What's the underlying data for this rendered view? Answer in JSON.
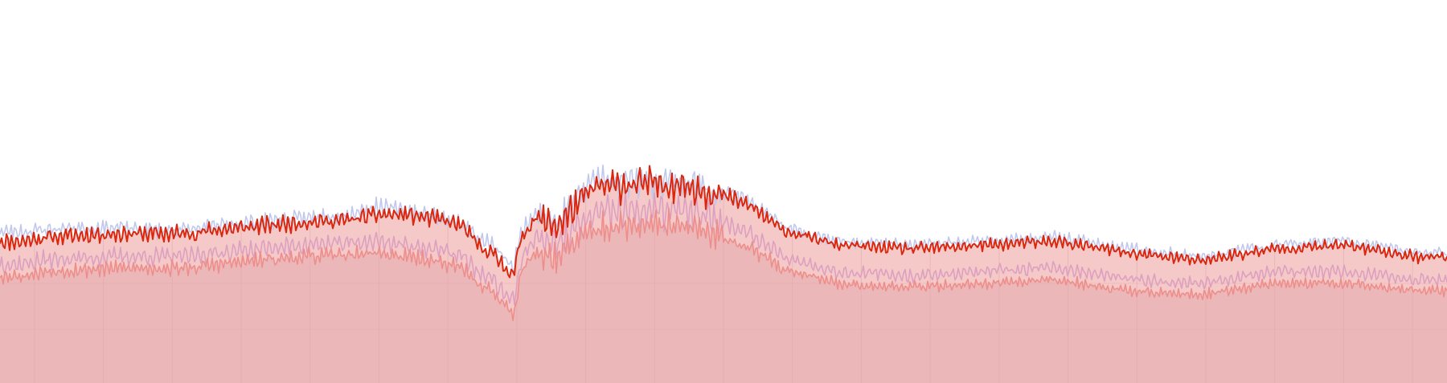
{
  "chart_data": {
    "type": "area",
    "title": "",
    "xlabel": "",
    "ylabel": "",
    "xlim": [
      0,
      100
    ],
    "ylim": [
      0,
      100
    ],
    "grid": true,
    "grid_x_count": 21,
    "legend": "none",
    "colors": {
      "background": "#ffffff",
      "area_main": "#f4c9c7",
      "area_lower": "#ecb7b9",
      "line_main": "#d9280f",
      "line_blue": "#c1c8ec",
      "line_pink": "#dda0c1",
      "line_salmon": "#ee8e8b",
      "grid": "#e3aaad"
    },
    "series": [
      {
        "key": "main",
        "x": [
          0,
          1.5,
          3,
          5,
          8,
          10,
          13,
          15,
          18,
          21,
          24,
          26,
          28,
          30,
          32,
          33,
          34,
          35.5,
          36,
          37,
          38.5,
          41,
          44,
          47,
          50,
          52,
          54,
          56,
          58,
          63,
          68,
          73,
          78,
          83,
          88,
          93,
          98,
          100
        ],
        "y": [
          37,
          37,
          38,
          38.5,
          39,
          39,
          39,
          40,
          41,
          42,
          42.5,
          44,
          44,
          43,
          41,
          36,
          34,
          28,
          38,
          43,
          41,
          51,
          52,
          52,
          49,
          46,
          40,
          38,
          36,
          35,
          36,
          37,
          34,
          32,
          35,
          36,
          33,
          33
        ]
      },
      {
        "key": "blue",
        "x": [
          0,
          1.5,
          3,
          5,
          8,
          10,
          13,
          15,
          18,
          21,
          24,
          26,
          28,
          30,
          32,
          33,
          34,
          35.5,
          36,
          37,
          38.5,
          41,
          44,
          47,
          50,
          52,
          54,
          56,
          58,
          63,
          68,
          73,
          78,
          83,
          88,
          93,
          98,
          100
        ],
        "y": [
          39.5,
          39.5,
          40,
          40.5,
          40.5,
          40,
          40,
          41,
          42,
          43,
          44,
          46,
          45,
          43.5,
          41.5,
          38,
          36,
          30,
          39,
          45,
          42,
          53,
          53,
          52.5,
          50,
          47,
          41,
          39,
          37,
          36,
          37,
          38,
          35,
          33,
          36,
          37,
          34,
          34
        ]
      },
      {
        "key": "pink",
        "x": [
          0,
          1.5,
          3,
          5,
          8,
          10,
          13,
          15,
          18,
          21,
          24,
          26,
          28,
          30,
          32,
          33,
          34,
          35.5,
          36,
          37,
          38.5,
          41,
          44,
          47,
          50,
          52,
          54,
          56,
          58,
          63,
          68,
          73,
          78,
          83,
          88,
          93,
          98,
          100
        ],
        "y": [
          31,
          31,
          32,
          32.5,
          33,
          33,
          33,
          34,
          35,
          36,
          36.5,
          37,
          36,
          35,
          33,
          29,
          27,
          21,
          32,
          38,
          36,
          44,
          45,
          45,
          42,
          39,
          33,
          31,
          29,
          28,
          29,
          30,
          27,
          26,
          29,
          29,
          27,
          27
        ]
      },
      {
        "key": "salmon",
        "x": [
          0,
          1.5,
          3,
          5,
          8,
          10,
          13,
          15,
          18,
          21,
          24,
          26,
          28,
          30,
          32,
          33,
          34,
          35.5,
          36,
          37,
          38.5,
          41,
          44,
          47,
          50,
          52,
          54,
          56,
          58,
          63,
          68,
          73,
          78,
          83,
          88,
          93,
          98,
          100
        ],
        "y": [
          28,
          28,
          29,
          29.5,
          30,
          30,
          30,
          31,
          32,
          33,
          33.5,
          34,
          33,
          32,
          30,
          26,
          24,
          18,
          29,
          34,
          33,
          40,
          41,
          41,
          38,
          35,
          30,
          28,
          26,
          25,
          26,
          27,
          24,
          23,
          26,
          26,
          24,
          24
        ]
      }
    ]
  }
}
